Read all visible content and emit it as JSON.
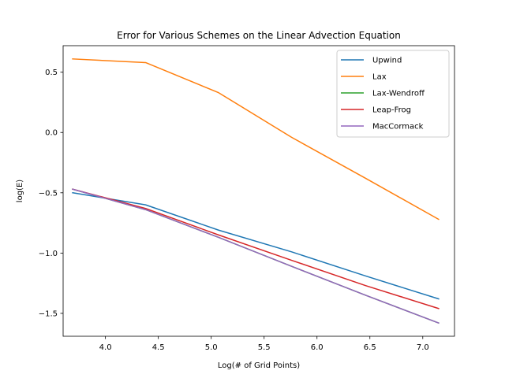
{
  "chart_data": {
    "type": "line",
    "title": "Error for Various Schemes on the Linear Advection Equation",
    "xlabel": "Log(# of Grid Points)",
    "ylabel": "log(E)",
    "xlim": [
      3.6,
      7.3
    ],
    "ylim": [
      -1.69,
      0.72
    ],
    "xticks": [
      4.0,
      4.5,
      5.0,
      5.5,
      6.0,
      6.5,
      7.0
    ],
    "xtick_labels": [
      "4.0",
      "4.5",
      "5.0",
      "5.5",
      "6.0",
      "6.5",
      "7.0"
    ],
    "yticks": [
      -1.5,
      -1.0,
      -0.5,
      0.0,
      0.5
    ],
    "ytick_labels": [
      "−1.5",
      "−1.0",
      "−0.5",
      "0.0",
      "0.5"
    ],
    "grid": false,
    "legend_position": "top-right",
    "x": [
      3.69,
      4.38,
      5.07,
      5.76,
      6.46,
      7.15
    ],
    "series": [
      {
        "name": "Upwind",
        "color": "#1f77b4",
        "values": [
          -0.5,
          -0.6,
          -0.81,
          -0.99,
          -1.19,
          -1.38
        ]
      },
      {
        "name": "Lax",
        "color": "#ff7f0e",
        "values": [
          0.61,
          0.58,
          0.33,
          -0.04,
          -0.38,
          -0.72
        ]
      },
      {
        "name": "Lax-Wendroff",
        "color": "#2ca02c",
        "values": [
          -0.47,
          -0.64,
          -0.87,
          -1.11,
          -1.35,
          -1.58
        ]
      },
      {
        "name": "Leap-Frog",
        "color": "#d62728",
        "values": [
          -0.47,
          -0.63,
          -0.85,
          -1.06,
          -1.27,
          -1.46
        ]
      },
      {
        "name": "MacCormack",
        "color": "#9467bd",
        "values": [
          -0.47,
          -0.64,
          -0.87,
          -1.11,
          -1.35,
          -1.58
        ]
      }
    ]
  }
}
